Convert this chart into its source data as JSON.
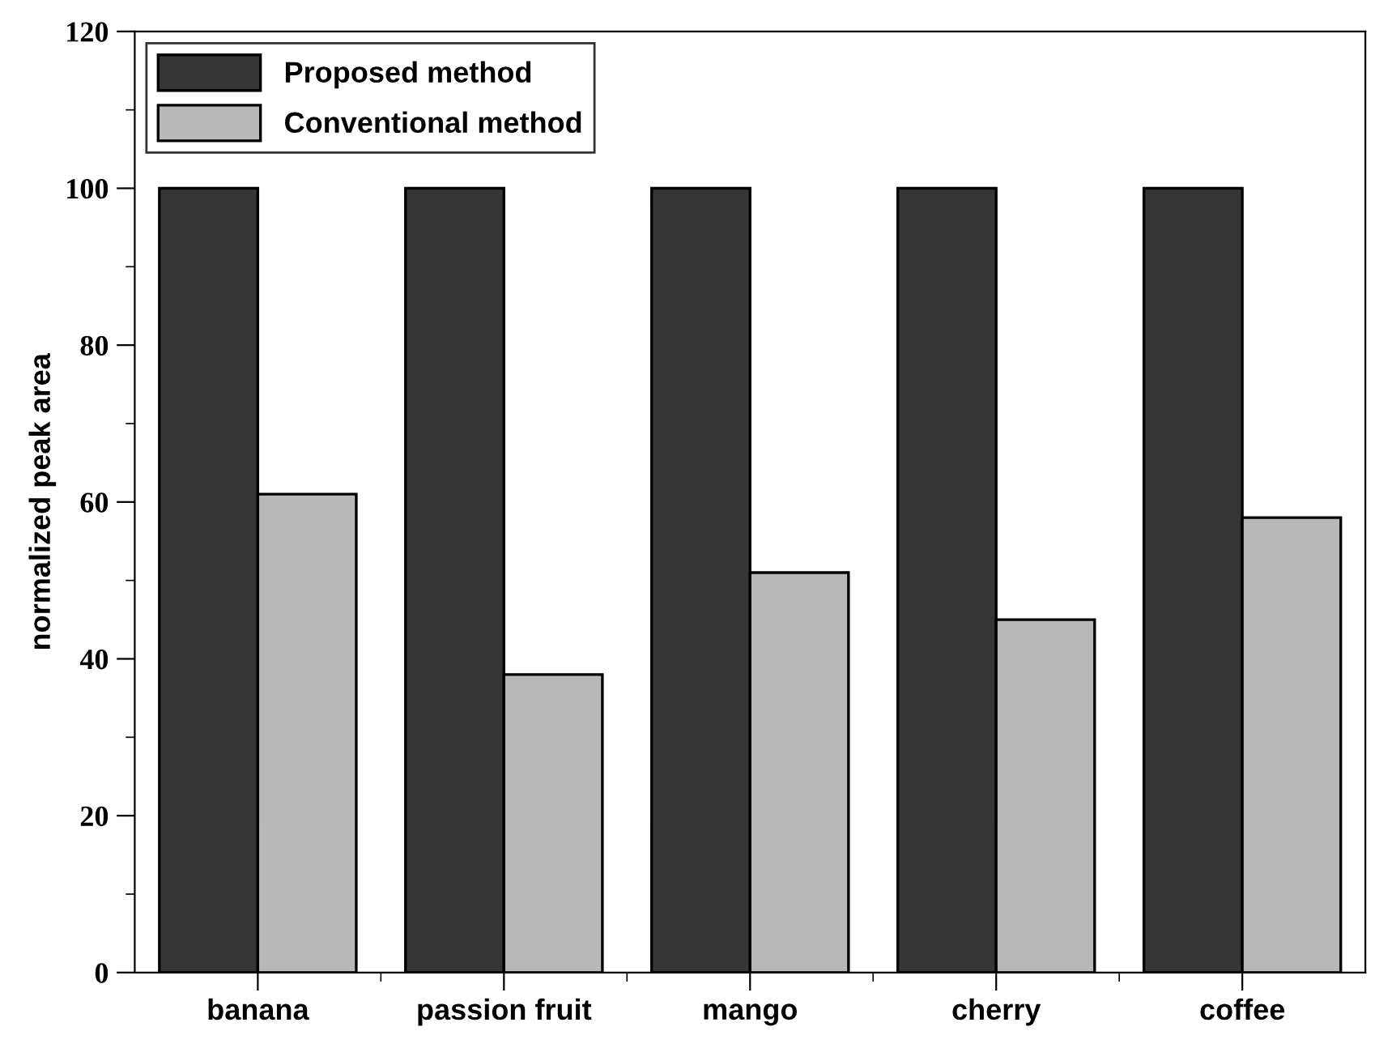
{
  "chart_data": {
    "type": "bar",
    "ylabel": "normalized peak area",
    "categories": [
      "banana",
      "passion fruit",
      "mango",
      "cherry",
      "coffee"
    ],
    "series": [
      {
        "name": "Proposed method",
        "color": "#363636",
        "values": [
          100,
          100,
          100,
          100,
          100
        ]
      },
      {
        "name": "Conventional method",
        "color": "#b8b8b8",
        "values": [
          61,
          38,
          51,
          45,
          58
        ]
      }
    ],
    "ylim": [
      0,
      120
    ],
    "yticks": [
      0,
      20,
      40,
      60,
      80,
      100,
      120
    ],
    "grid": false,
    "legend": "top left"
  }
}
